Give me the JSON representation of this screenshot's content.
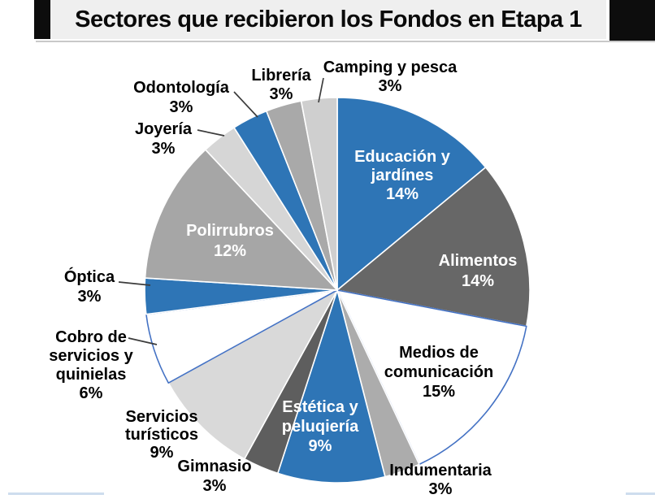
{
  "header": {
    "title": "Sectores que recibieron los Fondos en Etapa 1"
  },
  "chart_data": {
    "type": "pie",
    "title": "Sectores que recibieron los Fondos en Etapa 1",
    "unit": "%",
    "start_angle_deg": 0,
    "direction": "clockwise",
    "legend": "none",
    "slices": [
      {
        "id": "educacion",
        "label": "Educación y jardínes",
        "label_lines": [
          "Educación y",
          "jardínes"
        ],
        "value": 14,
        "color": "#2E75B6",
        "stroke": "#FFFFFF",
        "label_placement": "inside",
        "label_color": "#FFFFFF",
        "leader": false
      },
      {
        "id": "alimentos",
        "label": "Alimentos",
        "label_lines": [
          "Alimentos"
        ],
        "value": 14,
        "color": "#676767",
        "stroke": "#FFFFFF",
        "label_placement": "inside",
        "label_color": "#FFFFFF",
        "leader": false
      },
      {
        "id": "medios",
        "label": "Medios de comunicación",
        "label_lines": [
          "Medios de",
          "comunicación"
        ],
        "value": 15,
        "color": "#FFFFFF",
        "stroke": "#4472C4",
        "label_placement": "inside",
        "label_color": "#000000",
        "leader": false
      },
      {
        "id": "indumentaria",
        "label": "Indumentaria",
        "label_lines": [
          "Indumentaria"
        ],
        "value": 3,
        "color": "#ACACAC",
        "stroke": "#FFFFFF",
        "label_placement": "outside",
        "label_color": "#000000",
        "leader": false
      },
      {
        "id": "estetica",
        "label": "Estética y peluqiería",
        "label_lines": [
          "Estética y",
          "peluqiería"
        ],
        "value": 9,
        "color": "#2E75B6",
        "stroke": "#FFFFFF",
        "label_placement": "inside",
        "label_color": "#FFFFFF",
        "leader": false
      },
      {
        "id": "gimnasio",
        "label": "Gimnasio",
        "label_lines": [
          "Gimnasio"
        ],
        "value": 3,
        "color": "#5E5E5E",
        "stroke": "#FFFFFF",
        "label_placement": "outside",
        "label_color": "#000000",
        "leader": false
      },
      {
        "id": "turisticos",
        "label": "Servicios turísticos",
        "label_lines": [
          "Servicios",
          "turísticos"
        ],
        "value": 9,
        "color": "#D9D9D9",
        "stroke": "#FFFFFF",
        "label_placement": "outside",
        "label_color": "#000000",
        "leader": false
      },
      {
        "id": "cobro",
        "label": "Cobro de servicios y quinielas",
        "label_lines": [
          "Cobro de",
          "servicios y",
          "quinielas"
        ],
        "value": 6,
        "color": "#FFFFFF",
        "stroke": "#4472C4",
        "label_placement": "outside",
        "label_color": "#000000",
        "leader": true
      },
      {
        "id": "optica",
        "label": "Óptica",
        "label_lines": [
          "Óptica"
        ],
        "value": 3,
        "color": "#2E75B6",
        "stroke": "#FFFFFF",
        "label_placement": "outside",
        "label_color": "#000000",
        "leader": true
      },
      {
        "id": "polirrubros",
        "label": "Polirrubros",
        "label_lines": [
          "Polirrubros"
        ],
        "value": 12,
        "color": "#A6A6A6",
        "stroke": "#FFFFFF",
        "label_placement": "inside",
        "label_color": "#FFFFFF",
        "leader": false
      },
      {
        "id": "joyeria",
        "label": "Joyería",
        "label_lines": [
          "Joyería"
        ],
        "value": 3,
        "color": "#D6D6D6",
        "stroke": "#FFFFFF",
        "label_placement": "outside",
        "label_color": "#000000",
        "leader": true
      },
      {
        "id": "odontologia",
        "label": "Odontología",
        "label_lines": [
          "Odontología"
        ],
        "value": 3,
        "color": "#2E75B6",
        "stroke": "#FFFFFF",
        "label_placement": "outside",
        "label_color": "#000000",
        "leader": true
      },
      {
        "id": "libreria",
        "label": "Librería",
        "label_lines": [
          "Librería"
        ],
        "value": 3,
        "color": "#A9A9A9",
        "stroke": "#FFFFFF",
        "label_placement": "outside",
        "label_color": "#000000",
        "leader": false
      },
      {
        "id": "camping",
        "label": "Camping y pesca",
        "label_lines": [
          "Camping y pesca"
        ],
        "value": 3,
        "color": "#CFCFCF",
        "stroke": "#FFFFFF",
        "label_placement": "outside",
        "label_color": "#000000",
        "leader": true
      }
    ],
    "colors": {
      "accent_blue": "#2E75B6",
      "white_slice_stroke": "#4472C4",
      "title_bar_bg": "#EFEFEF",
      "title_bar_black": "#0D0D0D"
    }
  }
}
